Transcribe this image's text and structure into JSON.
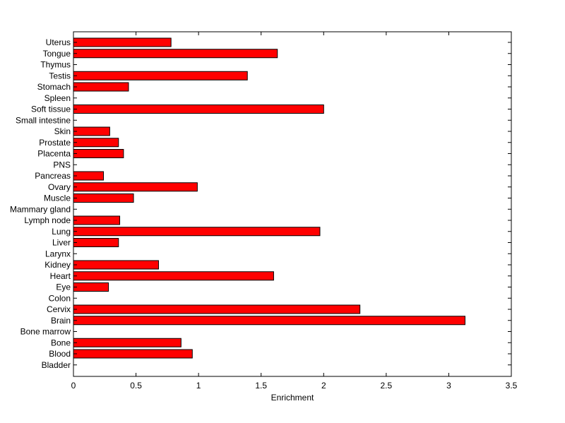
{
  "chart_data": {
    "type": "bar",
    "orientation": "horizontal",
    "title": "",
    "xlabel": "Enrichment",
    "ylabel": "",
    "xlim": [
      0,
      3.5
    ],
    "xticks": [
      0,
      0.5,
      1,
      1.5,
      2,
      2.5,
      3,
      3.5
    ],
    "xtick_labels": [
      "0",
      "0.5",
      "1",
      "1.5",
      "2",
      "2.5",
      "3",
      "3.5"
    ],
    "grid": false,
    "legend": "none",
    "bar_color": "#ff0000",
    "categories": [
      "Bladder",
      "Blood",
      "Bone",
      "Bone marrow",
      "Brain",
      "Cervix",
      "Colon",
      "Eye",
      "Heart",
      "Kidney",
      "Larynx",
      "Liver",
      "Lung",
      "Lymph node",
      "Mammary gland",
      "Muscle",
      "Ovary",
      "Pancreas",
      "PNS",
      "Placenta",
      "Prostate",
      "Skin",
      "Small intestine",
      "Soft tissue",
      "Spleen",
      "Stomach",
      "Testis",
      "Thymus",
      "Tongue",
      "Uterus"
    ],
    "values": [
      0,
      0.95,
      0.86,
      0,
      3.13,
      2.29,
      0,
      0.28,
      1.6,
      0.68,
      0,
      0.36,
      1.97,
      0.37,
      0,
      0.48,
      0.99,
      0.24,
      0,
      0.4,
      0.36,
      0.29,
      0,
      2.0,
      0,
      0.44,
      1.39,
      0,
      1.63,
      0.78
    ]
  }
}
